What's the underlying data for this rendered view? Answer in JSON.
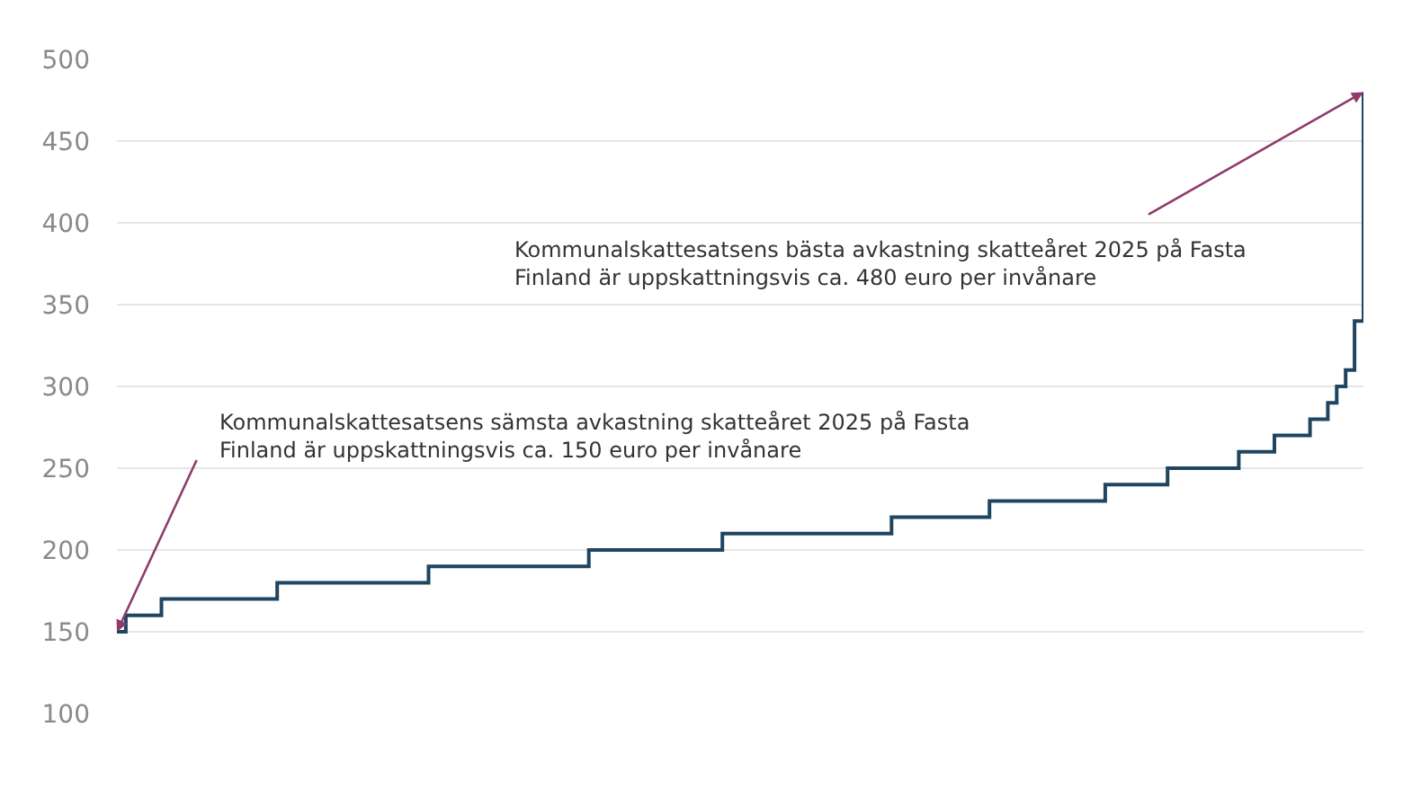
{
  "chart_data": {
    "type": "step",
    "categories": [
      null,
      null,
      null,
      null,
      null,
      null,
      null,
      null,
      null,
      null,
      null,
      null,
      null,
      null,
      null,
      null,
      null,
      null,
      null,
      null,
      null,
      null,
      null,
      null,
      null,
      null,
      null,
      null,
      null,
      null,
      null,
      null,
      null,
      null,
      null,
      null,
      null,
      null,
      null,
      null,
      null,
      null,
      null,
      null,
      null,
      null,
      null,
      null,
      null,
      null,
      null,
      null,
      null,
      null,
      null,
      null,
      null,
      null,
      null,
      null,
      null,
      null,
      null,
      null,
      null,
      null,
      null,
      null,
      null,
      null,
      null,
      null,
      null,
      null,
      null,
      null,
      null,
      null,
      null,
      null,
      null,
      null,
      null,
      null,
      null,
      null,
      null,
      null,
      null,
      null,
      null,
      null,
      null,
      null,
      null,
      null,
      null,
      null,
      null,
      null,
      null,
      null,
      null,
      null,
      null,
      null,
      null,
      null,
      null,
      null,
      null,
      null,
      null,
      null,
      null,
      null,
      null,
      null,
      null,
      null,
      null,
      null,
      null,
      null,
      null,
      null,
      null,
      null,
      null,
      null,
      null,
      null,
      null,
      null,
      null,
      null,
      null,
      null,
      null,
      null,
      null
    ],
    "series": [
      {
        "color": "#1f4560",
        "values": [
          150,
          160,
          160,
          160,
          160,
          170,
          170,
          170,
          170,
          170,
          170,
          170,
          170,
          170,
          170,
          170,
          170,
          170,
          180,
          180,
          180,
          180,
          180,
          180,
          180,
          180,
          180,
          180,
          180,
          180,
          180,
          180,
          180,
          180,
          180,
          190,
          190,
          190,
          190,
          190,
          190,
          190,
          190,
          190,
          190,
          190,
          190,
          190,
          190,
          190,
          190,
          190,
          190,
          200,
          200,
          200,
          200,
          200,
          200,
          200,
          200,
          200,
          200,
          200,
          200,
          200,
          200,
          200,
          210,
          210,
          210,
          210,
          210,
          210,
          210,
          210,
          210,
          210,
          210,
          210,
          210,
          210,
          210,
          210,
          210,
          210,
          210,
          220,
          220,
          220,
          220,
          220,
          220,
          220,
          220,
          220,
          220,
          220,
          230,
          230,
          230,
          230,
          230,
          230,
          230,
          230,
          230,
          230,
          230,
          230,
          230,
          240,
          240,
          240,
          240,
          240,
          240,
          240,
          250,
          250,
          250,
          250,
          250,
          250,
          250,
          250,
          260,
          260,
          260,
          260,
          270,
          270,
          270,
          270,
          280,
          280,
          290,
          300,
          310,
          340,
          480
        ]
      }
    ],
    "ylim": [
      100,
      500
    ],
    "yticks": [
      100,
      150,
      200,
      250,
      300,
      350,
      400,
      450,
      500
    ],
    "grid": "y",
    "tick_labels": "y",
    "marker": "none",
    "line_style": "solid",
    "annotations": [
      "Kommunalskattesatsens sämsta avkastning skatteåret 2025 på Fasta\nFinland är uppskattningsvis ca. 150 euro per invånare",
      "Kommunalskattesatsens bästa avkastning skatteåret 2025 på Fasta\nFinland är uppskattningsvis ca. 480 euro per invånare"
    ]
  }
}
